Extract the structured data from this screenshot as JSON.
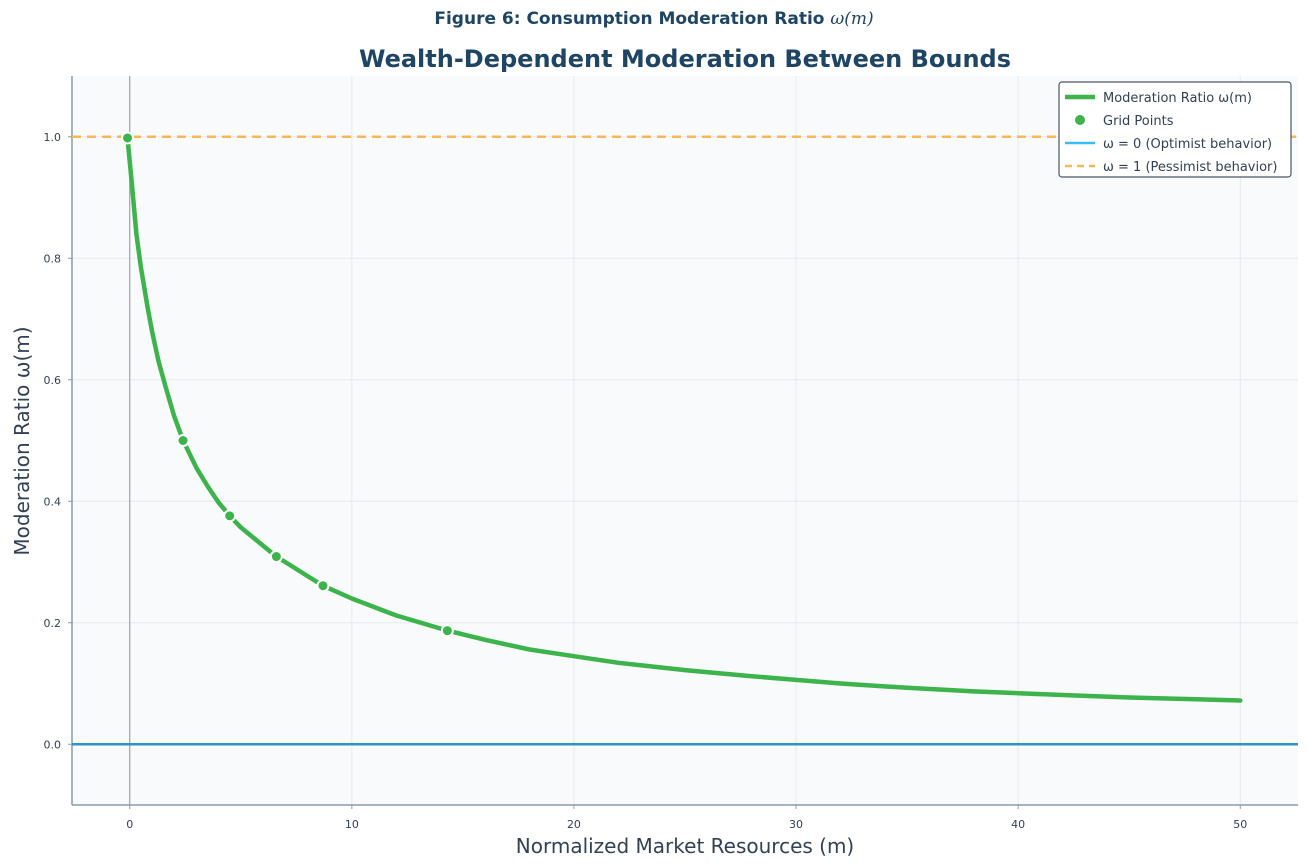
{
  "figure_label": {
    "prefix": "Figure 6: Consumption Moderation Ratio",
    "math": "ω(m)"
  },
  "chart_data": {
    "type": "line",
    "title": "Wealth-Dependent Moderation Between Bounds",
    "xlabel": "Normalized Market Resources (m)",
    "ylabel": "Moderation Ratio ω(m)",
    "xlim": [
      -2.6,
      52.6
    ],
    "ylim": [
      -0.1,
      1.1
    ],
    "x_ticks": [
      0,
      10,
      20,
      30,
      40,
      50
    ],
    "x_tick_labels": [
      "0",
      "10",
      "20",
      "30",
      "40",
      "50"
    ],
    "y_ticks": [
      0.0,
      0.2,
      0.4,
      0.6,
      0.8,
      1.0
    ],
    "y_tick_labels": [
      "0.0",
      "0.2",
      "0.4",
      "0.6",
      "0.8",
      "1.0"
    ],
    "grid": true,
    "legend_position": "top-right",
    "series": [
      {
        "name": "Moderation Ratio ω(m)",
        "kind": "line",
        "color": "#3cb44b",
        "x": [
          -0.1,
          0.1,
          0.3,
          0.5,
          0.8,
          1.0,
          1.3,
          1.6,
          2.0,
          2.4,
          3.0,
          3.5,
          4.0,
          4.5,
          5.0,
          6.0,
          6.6,
          7.0,
          8.0,
          8.7,
          10.0,
          12.0,
          14.3,
          16.0,
          18.0,
          20.0,
          22.0,
          25.0,
          28.0,
          30.0,
          32.0,
          35.0,
          38.0,
          40.0,
          42.0,
          45.0,
          48.0,
          50.0
        ],
        "y": [
          0.998,
          0.92,
          0.84,
          0.785,
          0.72,
          0.68,
          0.63,
          0.59,
          0.54,
          0.5,
          0.455,
          0.425,
          0.398,
          0.376,
          0.357,
          0.327,
          0.309,
          0.3,
          0.277,
          0.261,
          0.24,
          0.212,
          0.187,
          0.172,
          0.156,
          0.145,
          0.134,
          0.122,
          0.112,
          0.106,
          0.1,
          0.093,
          0.087,
          0.084,
          0.081,
          0.077,
          0.074,
          0.072
        ]
      },
      {
        "name": "Grid Points",
        "kind": "scatter",
        "color": "#3cb44b",
        "x": [
          -0.1,
          2.4,
          4.5,
          6.6,
          8.7,
          14.3
        ],
        "y": [
          0.998,
          0.5,
          0.376,
          0.309,
          0.261,
          0.187
        ]
      },
      {
        "name": "ω = 0 (Optimist behavior)",
        "kind": "hline",
        "color": "#2e93c7",
        "legend_color": "#38bdf8",
        "y": 0
      },
      {
        "name": "ω = 1 (Pessimist behavior)",
        "kind": "hline-dashed",
        "color": "#f7b955",
        "y": 1
      }
    ]
  }
}
